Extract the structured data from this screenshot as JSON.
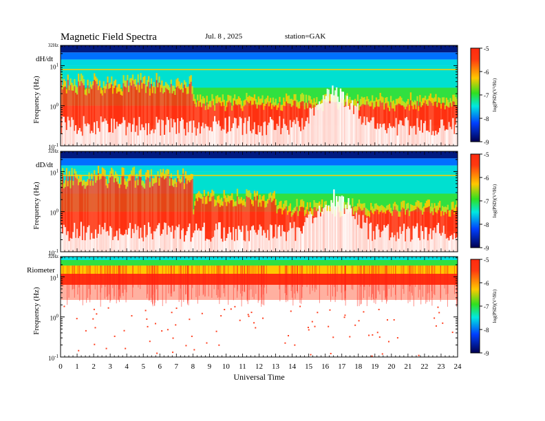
{
  "header": {
    "title": "Magnetic  Field  Spectra",
    "date": "Jul.  8  , 2025",
    "station": "station=GAK"
  },
  "chart_data": {
    "type": "heatmap",
    "shared_x": {
      "label": "Universal  Time",
      "range": [
        0,
        24
      ],
      "ticks": [
        "0",
        "1",
        "2",
        "3",
        "4",
        "5",
        "6",
        "7",
        "8",
        "9",
        "10",
        "11",
        "12",
        "13",
        "14",
        "15",
        "16",
        "17",
        "18",
        "19",
        "20",
        "21",
        "22",
        "23",
        "24"
      ]
    },
    "y_scale": "log",
    "y_range_hz": [
      0.1,
      32
    ],
    "y_tick_labels": {
      "top": "32Hz",
      "t10": "10",
      "t1": "10",
      "t01": "10"
    },
    "y_tick_exponents": {
      "t10": "1",
      "t1": "0",
      "t01": "-1"
    },
    "colorbar": {
      "label": "log(PSD)(V²/Hz)",
      "range": [
        -9,
        -5
      ],
      "ticks": [
        "-5",
        "-6",
        "-7",
        "-8",
        "-9"
      ],
      "colors": [
        "#f4f4f4",
        "#ff3010",
        "#ffd000",
        "#20e020",
        "#00e0e0",
        "#0050ff",
        "#000060"
      ]
    },
    "panels": [
      {
        "name": "dH/dt",
        "ylabel": "Frequency  (Hz)",
        "colorbar_label": "log(PSD)(V²/Hz)"
      },
      {
        "name": "dD/dt",
        "ylabel": "Frequency  (Hz)",
        "colorbar_label": "log(PSD)(V²/Hz)"
      },
      {
        "name": "Riometer",
        "ylabel": "Frequency  (Hz)",
        "colorbar_label": "log(PSD)(V²/Hz)"
      }
    ]
  }
}
